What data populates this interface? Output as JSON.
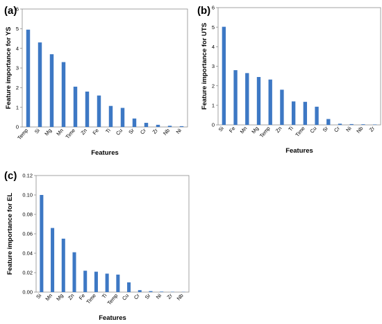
{
  "chart_data": [
    {
      "panel": "(a)",
      "type": "bar",
      "categories": [
        "Temp",
        "Si",
        "Mg",
        "Mn",
        "Time",
        "Zn",
        "Fe",
        "Ti",
        "Cu",
        "Sr",
        "Cr",
        "Zr",
        "Nb",
        "Ni"
      ],
      "values": [
        4.95,
        4.3,
        3.7,
        3.3,
        2.05,
        1.8,
        1.6,
        1.07,
        0.97,
        0.43,
        0.21,
        0.11,
        0.06,
        0.04
      ],
      "xlabel": "Features",
      "ylabel": "Feature importance for YS",
      "ylim": [
        0,
        6
      ],
      "yticks": [
        "0",
        "1",
        "2",
        "3",
        "4",
        "5",
        "6"
      ],
      "color": "#3d78c4"
    },
    {
      "panel": "(b)",
      "type": "bar",
      "categories": [
        "Si",
        "Fe",
        "Mn",
        "Mg",
        "Temp",
        "Zn",
        "Ti",
        "Time",
        "Cu",
        "Sr",
        "Cr",
        "Ni",
        "Nb",
        "Zr"
      ],
      "values": [
        5.02,
        2.8,
        2.65,
        2.45,
        2.32,
        1.8,
        1.2,
        1.18,
        0.93,
        0.3,
        0.06,
        0.04,
        0.03,
        0.02
      ],
      "xlabel": "Features",
      "ylabel": "Feature importance for UTS",
      "ylim": [
        0,
        6
      ],
      "yticks": [
        "0",
        "1",
        "2",
        "3",
        "4",
        "5",
        "6"
      ],
      "color": "#3d78c4"
    },
    {
      "panel": "(c)",
      "type": "bar",
      "categories": [
        "Si",
        "Mn",
        "Mg",
        "Zn",
        "Fe",
        "Time",
        "Ti",
        "Temp",
        "Cu",
        "Cr",
        "Sr",
        "Ni",
        "Zr",
        "Nb"
      ],
      "values": [
        0.1,
        0.066,
        0.055,
        0.041,
        0.022,
        0.021,
        0.019,
        0.018,
        0.01,
        0.002,
        0.001,
        0.0005,
        0.0003,
        0.0002
      ],
      "xlabel": "Features",
      "ylabel": "Feature importance for EL",
      "ylim": [
        0,
        0.12
      ],
      "yticks": [
        "0.00",
        "0.02",
        "0.04",
        "0.06",
        "0.08",
        "0.10",
        "0.12"
      ],
      "color": "#3d78c4"
    }
  ]
}
